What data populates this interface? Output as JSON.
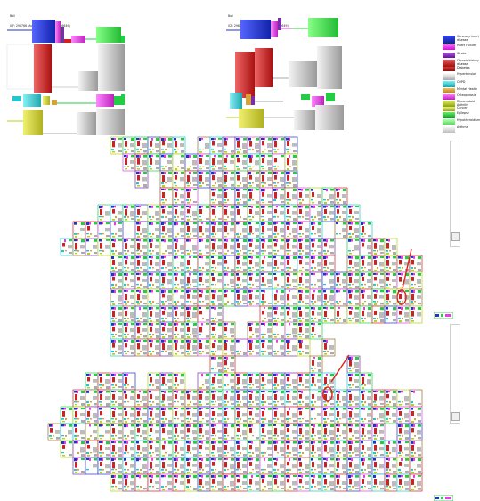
{
  "panels": [
    {
      "line1": "Ball",
      "line2": "ICF: 296766 (Average aspect ratio 2.6649)"
    },
    {
      "line1": "Ball",
      "line2": "ICF: 296766 (Average aspect ratio 2.6649)"
    }
  ],
  "legend": [
    {
      "label": "Coronary heart disease",
      "color": "#2233cc"
    },
    {
      "label": "Heart Failure",
      "color": "#e040e0"
    },
    {
      "label": "Stroke",
      "color": "#7a2faa"
    },
    {
      "label": "Chronic kidney disease",
      "color": "#cc2222"
    },
    {
      "label": "Diabetes",
      "color": "#cc2222"
    },
    {
      "label": "Hypertension",
      "color": "#9a9a9a"
    },
    {
      "label": "COPD",
      "color": "#22c7cc"
    },
    {
      "label": "Mental Health",
      "color": "#d8a23a"
    },
    {
      "label": "Osteoporosis",
      "color": "#e040e0"
    },
    {
      "label": "Rheumatoid Arthritis",
      "color": "#b3d21a"
    },
    {
      "label": "Cancer",
      "color": "#b3d21a"
    },
    {
      "label": "Epilepsy",
      "color": "#22cc44"
    },
    {
      "label": "Hypothyroidism",
      "color": "#66ee66"
    },
    {
      "label": "Asthma",
      "color": "#cccccc"
    }
  ],
  "side_labels": {
    "top": "Al",
    "bottom": "Al"
  },
  "colors": {
    "accent_red": "#e0201a",
    "tile_borders": [
      "#2233cc",
      "#cc2222",
      "#22c7cc",
      "#b3d21a",
      "#22cc44",
      "#e040e0",
      "#9a6a2a",
      "#7a2faa"
    ]
  },
  "icons": {
    "annotation": "red-circle-arrow-icon"
  }
}
